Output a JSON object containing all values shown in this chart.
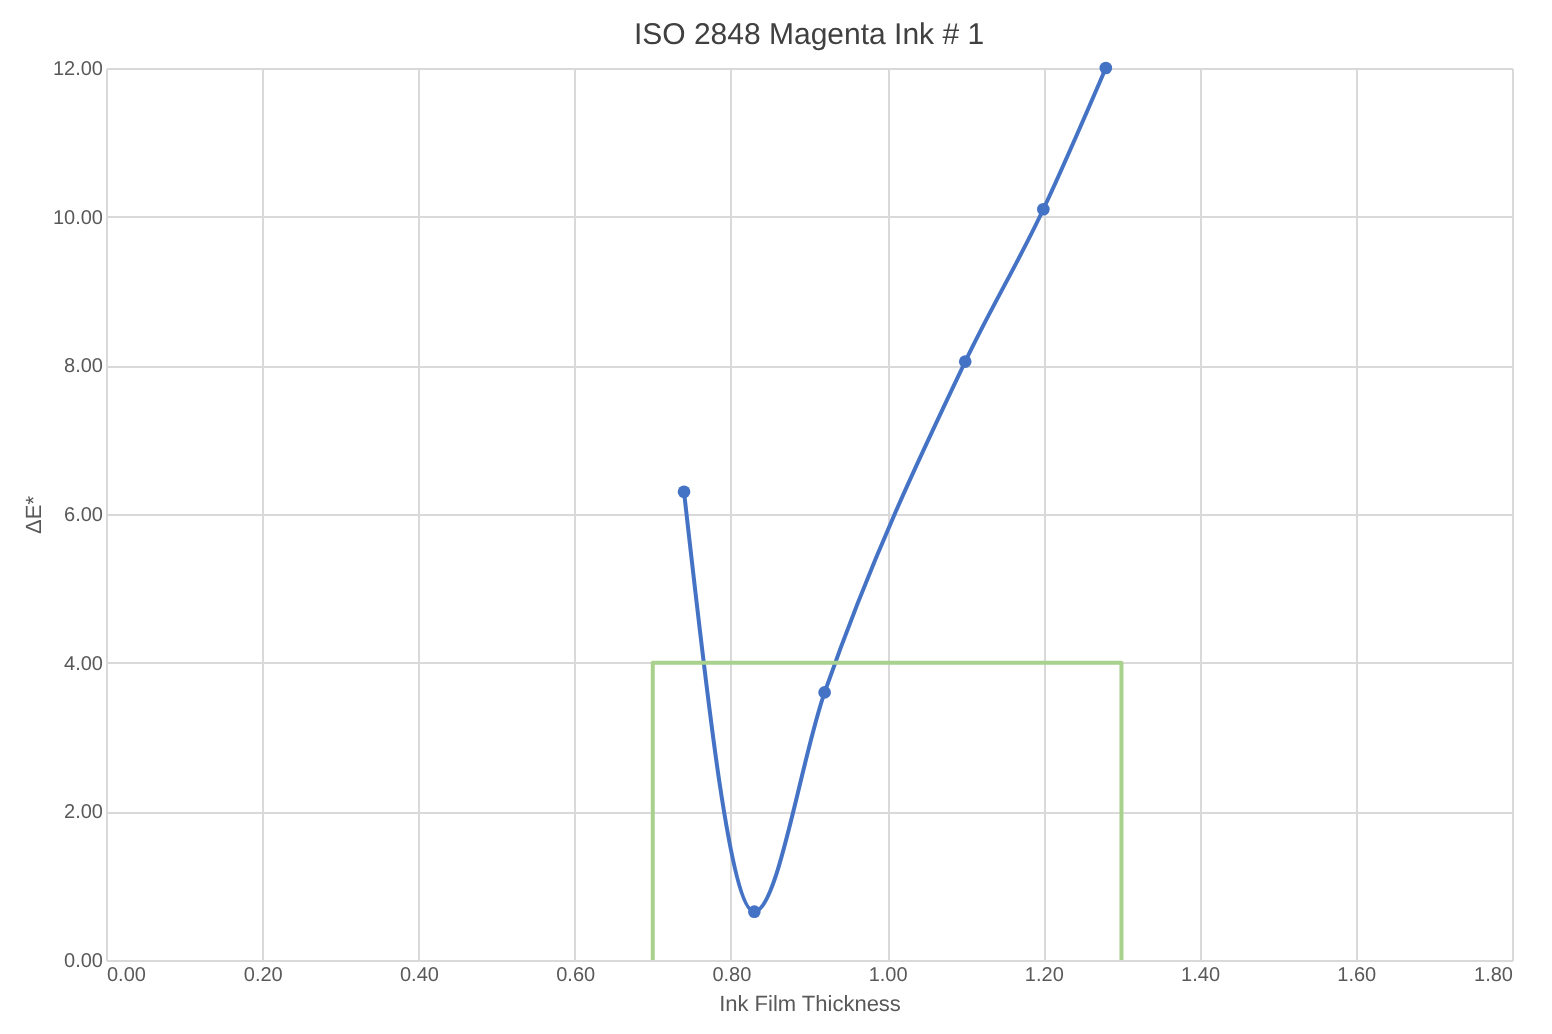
{
  "chart_data": {
    "type": "line",
    "title": "ISO 2848 Magenta Ink # 1",
    "xlabel": "Ink Film Thickness",
    "ylabel": "ΔE*",
    "series": [
      {
        "color": "#4472c4",
        "marker": "circle",
        "line_style": "solid",
        "x": [
          0.74,
          0.83,
          0.92,
          1.1,
          1.2,
          1.28
        ],
        "values": [
          6.3,
          0.65,
          3.6,
          8.05,
          10.1,
          12.0
        ]
      },
      {
        "color": "#a9d18e",
        "marker": "none",
        "line_style": "solid",
        "x": [
          0.7,
          0.7,
          1.3,
          1.3
        ],
        "values": [
          0,
          4,
          4,
          0
        ]
      }
    ],
    "xlim": [
      0,
      1.8
    ],
    "ylim": [
      0,
      12
    ],
    "xticks": [
      {
        "value": 0,
        "label": "0.00"
      },
      {
        "value": 0.2,
        "label": "0.20"
      },
      {
        "value": 0.4,
        "label": "0.40"
      },
      {
        "value": 0.6,
        "label": "0.60"
      },
      {
        "value": 0.8,
        "label": "0.80"
      },
      {
        "value": 1.0,
        "label": "1.00"
      },
      {
        "value": 1.2,
        "label": "1.20"
      },
      {
        "value": 1.4,
        "label": "1.40"
      },
      {
        "value": 1.6,
        "label": "1.60"
      },
      {
        "value": 1.8,
        "label": "1.80"
      }
    ],
    "yticks": [
      {
        "value": 0,
        "label": "0.00"
      },
      {
        "value": 2,
        "label": "2.00"
      },
      {
        "value": 4,
        "label": "4.00"
      },
      {
        "value": 6,
        "label": "6.00"
      },
      {
        "value": 8,
        "label": "8.00"
      },
      {
        "value": 10,
        "label": "10.00"
      },
      {
        "value": 12,
        "label": "12.00"
      }
    ],
    "grid": true
  }
}
